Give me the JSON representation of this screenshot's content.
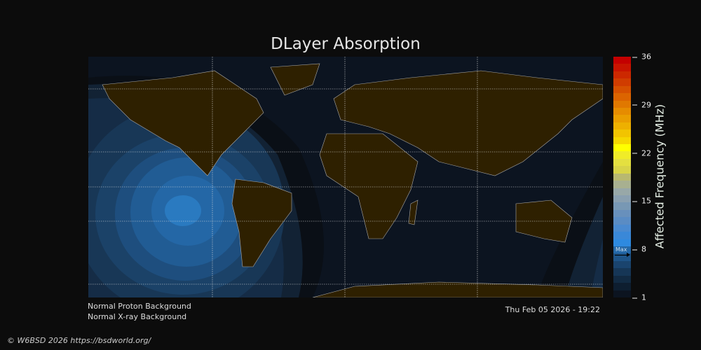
{
  "title": "DLayer Absorption",
  "colorbar": {
    "label": "Affected Frequency (MHz)",
    "ticks": [
      "36",
      "29",
      "22",
      "15",
      "8",
      "1"
    ],
    "min": 1,
    "max": 36,
    "max_marker_label": "Max",
    "max_marker_value": 7,
    "colors": [
      "#c40000",
      "#c81400",
      "#cc2800",
      "#d03c00",
      "#d65000",
      "#dc6400",
      "#e07800",
      "#e68c00",
      "#ea9e00",
      "#eeb000",
      "#f2c400",
      "#f6d800",
      "#ffff00",
      "#f0ec28",
      "#e4e040",
      "#d8d448",
      "#b8b870",
      "#a8b090",
      "#98a8a8",
      "#8aa0b0",
      "#7898b4",
      "#6890bc",
      "#5a8cc4",
      "#4a8ad0",
      "#3a88d8",
      "#2e8ae0",
      "#2468a8",
      "#1e5488",
      "#1a446e",
      "#163656",
      "#122a42",
      "#0e1e30",
      "#0c1420"
    ]
  },
  "map": {
    "land_color": "#2e2000",
    "ocean_color": "#0c1420",
    "coastline_color": "#aaaaaa",
    "max_absorption_mhz": 7
  },
  "info": {
    "proton": "Normal Proton Background",
    "xray": "Normal X-ray Background",
    "timestamp": "Thu Feb 05 2026 - 19:22"
  },
  "footer": "© W6BSD 2026 https://bsdworld.org/"
}
